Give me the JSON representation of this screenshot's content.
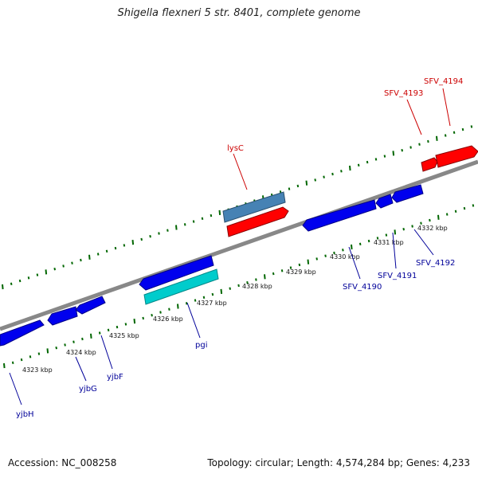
{
  "title": "Shigella flexneri 5 str. 8401, complete genome",
  "footer": {
    "accession": "Accession: NC_008258",
    "summary": "Topology: circular; Length: 4,574,284 bp; Genes: 4,233"
  },
  "colors": {
    "backbone": "#888888",
    "forward_gene": "#ff0000",
    "reverse_gene": "#0000ee",
    "forward_label": "#cc0000",
    "reverse_label": "#000099",
    "tick": "#006600",
    "gene_lysC": "#4682b4",
    "gene_pgi": "#00cccc"
  },
  "ticks": [
    "4323 kbp",
    "4324 kbp",
    "4325 kbp",
    "4326 kbp",
    "4327 kbp",
    "4328 kbp",
    "4329 kbp",
    "4330 kbp",
    "4331 kbp",
    "4332 kbp"
  ],
  "labels": {
    "forward": [
      "lysC",
      "SFV_4193",
      "SFV_4194"
    ],
    "reverse": [
      "yjbH",
      "yjbG",
      "yjbF",
      "pgi",
      "SFV_4190",
      "SFV_4191",
      "SFV_4192"
    ]
  }
}
